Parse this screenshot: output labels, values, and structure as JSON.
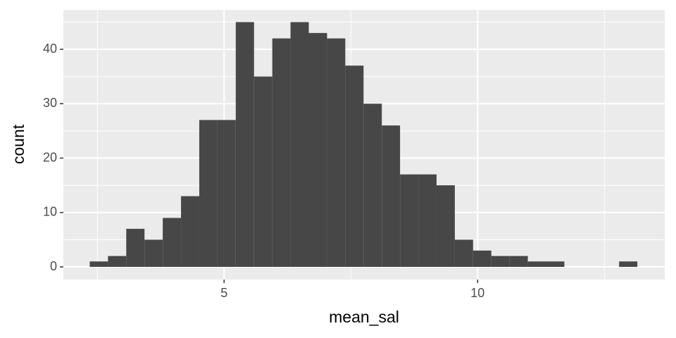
{
  "chart_data": {
    "type": "histogram",
    "x_label": "mean_sal",
    "y_label": "count",
    "bins": [
      2.35,
      2.71,
      3.07,
      3.43,
      3.79,
      4.15,
      4.51,
      4.87,
      5.23,
      5.59,
      5.95,
      6.31,
      6.67,
      7.03,
      7.39,
      7.75,
      8.11,
      8.47,
      8.83,
      9.19,
      9.55,
      9.91,
      10.27,
      10.63,
      10.99,
      11.35,
      11.71,
      12.07,
      12.43,
      12.79,
      13.15
    ],
    "values": [
      1,
      2,
      7,
      5,
      9,
      13,
      27,
      27,
      45,
      35,
      42,
      45,
      43,
      42,
      37,
      30,
      26,
      17,
      17,
      15,
      5,
      3,
      2,
      2,
      1,
      1,
      0,
      0,
      0,
      1
    ],
    "color": "#474747",
    "xlim": [
      1.83,
      13.69
    ],
    "ylim": [
      -2.33,
      47.25
    ],
    "xticks": [
      5,
      10
    ],
    "yticks": [
      0,
      10,
      20,
      30,
      40
    ],
    "xminor": [
      2.5,
      7.5,
      12.5
    ],
    "yminor": [
      5,
      15,
      25,
      35,
      45
    ],
    "grid": true
  }
}
